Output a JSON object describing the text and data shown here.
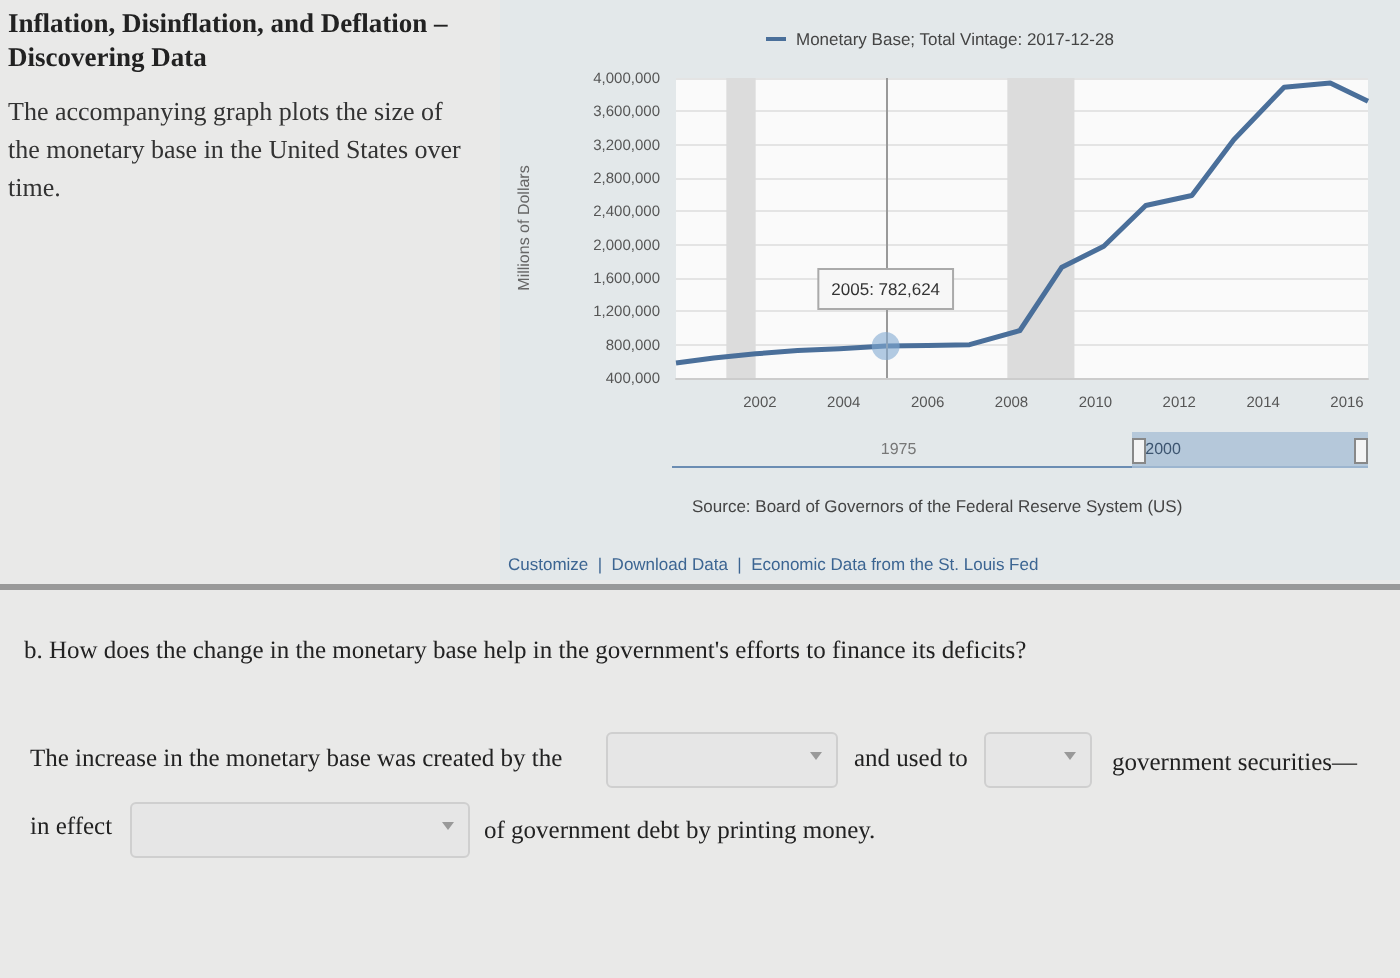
{
  "chart_data": {
    "type": "line",
    "title": "Inflation, Disinflation, and Deflation – Discovering Data",
    "ylabel": "Millions of Dollars",
    "series": [
      {
        "name": "Monetary Base; Total Vintage: 2017-12-28",
        "color": "#4a6f9a",
        "x": [
          2000,
          2000.9,
          2001.9,
          2002.9,
          2003.9,
          2005,
          2006,
          2007,
          2008.2,
          2009.2,
          2010.2,
          2011.2,
          2012.3,
          2013.3,
          2014.5,
          2015.6,
          2016.5
        ],
        "values": [
          580000,
          640000,
          690000,
          730000,
          750000,
          782624,
          790000,
          800000,
          970000,
          1730000,
          1980000,
          2470000,
          2590000,
          3260000,
          3890000,
          3940000,
          3720000
        ]
      }
    ],
    "xlim": [
      2000,
      2016.5
    ],
    "xticks": [
      2002,
      2004,
      2006,
      2008,
      2010,
      2012,
      2014,
      2016
    ],
    "ylim": [
      400000,
      4000000
    ],
    "yticks": [
      {
        "value": 400000,
        "label": "400,000"
      },
      {
        "value": 800000,
        "label": "800,000"
      },
      {
        "value": 1200000,
        "label": "1,200,000"
      },
      {
        "value": 1600000,
        "label": "1,600,000"
      },
      {
        "value": 2000000,
        "label": "2,000,000"
      },
      {
        "value": 2400000,
        "label": "2,400,000"
      },
      {
        "value": 2800000,
        "label": "2,800,000"
      },
      {
        "value": 3200000,
        "label": "3,200,000"
      },
      {
        "value": 3600000,
        "label": "3,600,000"
      },
      {
        "value": 4000000,
        "label": "4,000,000"
      }
    ],
    "grid": "y",
    "legend": "top",
    "marker": "none",
    "line_style": "solid",
    "bands": [
      {
        "axis": "x",
        "from": 2001.2,
        "to": 2001.9,
        "color": "#dcdcdc"
      },
      {
        "axis": "x",
        "from": 2007.9,
        "to": 2009.5,
        "color": "#dcdcdc"
      }
    ],
    "ref_lines": [
      {
        "axis": "x",
        "value": 2005,
        "color": "#999999"
      }
    ],
    "annotations": [
      "The accompanying graph plots the size of the monetary base in the United States over time.",
      "Source: Board of Governors of the Federal Reserve System (US)",
      "Customize  |  Download Data  |  Economic Data from the St. Louis Fed",
      "b. How does the change in the monetary base help in the government's efforts to finance its deficits?",
      "The increase in the monetary base was created by the",
      "and used to",
      "government securities—",
      "in effect",
      "of government debt by printing money.",
      "1975",
      "2000",
      {
        "text": "2005: 782,624",
        "x": 2005,
        "y": 782624
      }
    ]
  }
}
